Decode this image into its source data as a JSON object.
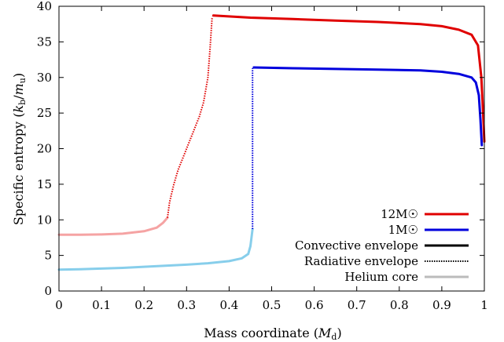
{
  "chart_data": {
    "type": "line",
    "xlabel": "Mass coordinate (M_d)",
    "ylabel": "Specific entropy (k_b/m_u)",
    "xlim": [
      0,
      1
    ],
    "ylim": [
      0,
      40
    ],
    "xticks": [
      "0",
      "0.1",
      "0.2",
      "0.3",
      "0.4",
      "0.5",
      "0.6",
      "0.7",
      "0.8",
      "0.9",
      "1"
    ],
    "yticks": [
      "0",
      "5",
      "10",
      "15",
      "20",
      "25",
      "30",
      "35",
      "40"
    ],
    "grid": false,
    "legend_position": "bottom-right",
    "legend": [
      {
        "label": "12M☉",
        "color": "#e00000",
        "style": "solid"
      },
      {
        "label": "1M☉",
        "color": "#0000dd",
        "style": "solid"
      },
      {
        "label": "Convective envelope",
        "color": "#000000",
        "style": "solid"
      },
      {
        "label": "Radiative envelope",
        "color": "#000000",
        "style": "dotted"
      },
      {
        "label": "Helium core",
        "color": "#bbbbbb",
        "style": "solid"
      }
    ],
    "series": [
      {
        "name": "12M☉",
        "segments": [
          {
            "region": "Helium core",
            "color": "#f5a3a3",
            "style": "solid",
            "x": [
              0,
              0.05,
              0.1,
              0.15,
              0.2,
              0.23,
              0.245,
              0.255
            ],
            "y": [
              7.9,
              7.9,
              7.95,
              8.05,
              8.4,
              8.9,
              9.6,
              10.3
            ]
          },
          {
            "region": "Radiative envelope",
            "color": "#e00000",
            "style": "dotted",
            "x": [
              0.255,
              0.26,
              0.27,
              0.28,
              0.29,
              0.3,
              0.31,
              0.32,
              0.33,
              0.34,
              0.35,
              0.355,
              0.36
            ],
            "y": [
              10.3,
              12.5,
              15.0,
              17.0,
              18.5,
              20.0,
              21.5,
              23.0,
              24.5,
              26.5,
              30.0,
              34.0,
              38.5
            ]
          },
          {
            "region": "Convective envelope",
            "color": "#e00000",
            "style": "solid",
            "x": [
              0.363,
              0.45,
              0.55,
              0.65,
              0.75,
              0.85,
              0.9,
              0.94,
              0.97,
              0.985,
              0.993,
              0.997,
              1.0
            ],
            "y": [
              38.7,
              38.4,
              38.2,
              38.0,
              37.8,
              37.5,
              37.2,
              36.7,
              36.0,
              34.5,
              30.0,
              25.0,
              21.0
            ]
          }
        ]
      },
      {
        "name": "1M☉",
        "segments": [
          {
            "region": "Helium core",
            "color": "#87ceeb",
            "style": "solid",
            "x": [
              0,
              0.05,
              0.1,
              0.15,
              0.2,
              0.25,
              0.3,
              0.35,
              0.4,
              0.43,
              0.445,
              0.45,
              0.455
            ],
            "y": [
              3.0,
              3.05,
              3.15,
              3.25,
              3.4,
              3.55,
              3.7,
              3.9,
              4.2,
              4.6,
              5.2,
              6.3,
              8.7
            ]
          },
          {
            "region": "Radiative envelope",
            "color": "#0000dd",
            "style": "dotted",
            "x": [
              0.455,
              0.455
            ],
            "y": [
              8.7,
              31.3
            ]
          },
          {
            "region": "Convective envelope",
            "color": "#0000dd",
            "style": "solid",
            "x": [
              0.458,
              0.55,
              0.65,
              0.75,
              0.85,
              0.9,
              0.94,
              0.97,
              0.98,
              0.987,
              0.991,
              0.994
            ],
            "y": [
              31.4,
              31.3,
              31.2,
              31.1,
              31.0,
              30.8,
              30.5,
              30.0,
              29.3,
              27.5,
              24.0,
              20.5
            ]
          }
        ]
      }
    ]
  }
}
